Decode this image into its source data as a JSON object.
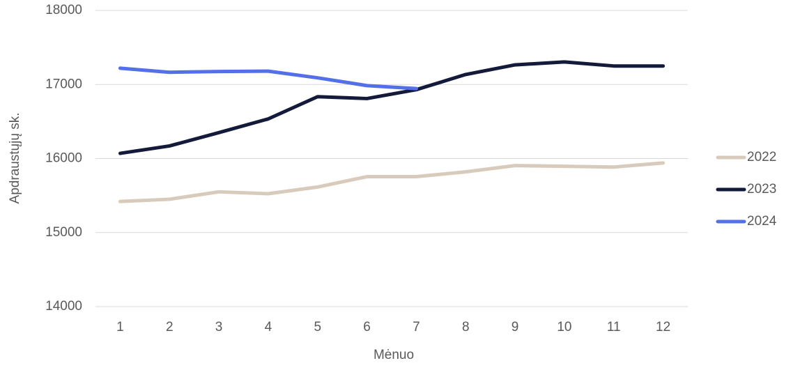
{
  "chart_data": {
    "type": "line",
    "x_label": "Mėnuo",
    "y_label": "Apdraustųjų sk.",
    "categories": [
      "1",
      "2",
      "3",
      "4",
      "5",
      "6",
      "7",
      "8",
      "9",
      "10",
      "11",
      "12"
    ],
    "series": [
      {
        "name": "2022",
        "color": "#d9cbbb",
        "values": [
          15420,
          15450,
          15550,
          15525,
          15615,
          15755,
          15755,
          15820,
          15905,
          15895,
          15885,
          15940
        ]
      },
      {
        "name": "2023",
        "color": "#141b3a",
        "values": [
          16070,
          16170,
          16350,
          16535,
          16835,
          16810,
          16930,
          17135,
          17265,
          17305,
          17250,
          17250
        ]
      },
      {
        "name": "2024",
        "color": "#5470e8",
        "values": [
          17220,
          17165,
          17175,
          17180,
          17090,
          16985,
          16945,
          null,
          null,
          null,
          null,
          null
        ]
      }
    ],
    "ylim": [
      14000,
      18000
    ],
    "yticks": [
      14000,
      15000,
      16000,
      17000,
      18000
    ],
    "grid": true,
    "legend": "right"
  }
}
